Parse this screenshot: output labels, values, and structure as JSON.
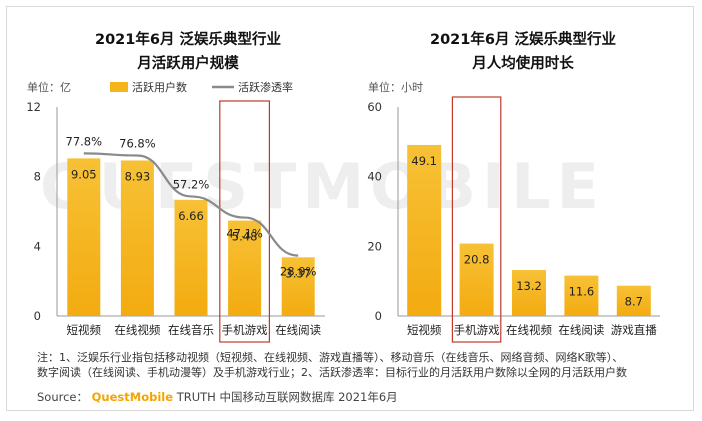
{
  "watermark": "QUESTMOBILE",
  "colors": {
    "bar": "#f4b51b",
    "line": "#8a8a8a",
    "highlight": "#c0392b",
    "axis": "#999999"
  },
  "legend": {
    "bar_label": "活跃用户数",
    "line_label": "活跃渗透率"
  },
  "chart_data": [
    {
      "type": "bar",
      "title_line1": "2021年6月 泛娱乐典型行业",
      "title_line2": "月活跃用户规模",
      "unit": "单位：亿",
      "categories": [
        "短视频",
        "在线视频",
        "在线音乐",
        "手机游戏",
        "在线阅读"
      ],
      "series": [
        {
          "name": "活跃用户数",
          "type": "bar",
          "values": [
            9.05,
            8.93,
            6.66,
            5.48,
            3.37
          ],
          "labels": [
            "9.05",
            "8.93",
            "6.66",
            "5.48",
            "3.37"
          ]
        },
        {
          "name": "活跃渗透率",
          "type": "line",
          "values": [
            77.8,
            76.8,
            57.2,
            47.1,
            28.9
          ],
          "labels": [
            "77.8%",
            "76.8%",
            "57.2%",
            "47.1%",
            "28.9%"
          ]
        }
      ],
      "ylim": [
        0,
        12
      ],
      "yticks": [
        "0",
        "4",
        "8",
        "12"
      ],
      "line_ylim": [
        0,
        100
      ],
      "highlight_category": "手机游戏"
    },
    {
      "type": "bar",
      "title_line1": "2021年6月 泛娱乐典型行业",
      "title_line2": "月人均使用时长",
      "unit": "单位：小时",
      "categories": [
        "短视频",
        "手机游戏",
        "在线视频",
        "在线阅读",
        "游戏直播"
      ],
      "values": [
        49.1,
        20.8,
        13.2,
        11.6,
        8.7
      ],
      "labels": [
        "49.1",
        "20.8",
        "13.2",
        "11.6",
        "8.7"
      ],
      "ylim": [
        0,
        60
      ],
      "yticks": [
        "0",
        "20",
        "40",
        "60"
      ],
      "highlight_category": "手机游戏"
    }
  ],
  "footer": {
    "note_line1": "注：1、泛娱乐行业指包括移动视频（短视频、在线视频、游戏直播等）、移动音乐（在线音乐、网络音频、网络K歌等）、",
    "note_line2": "数字阅读（在线阅读、手机动漫等）及手机游戏行业；2、活跃渗透率：目标行业的月活跃用户数除以全网的月活跃用户数",
    "source_prefix": "Source：",
    "source_brand": "QuestMobile",
    "source_rest": "TRUTH 中国移动互联网数据库 2021年6月"
  }
}
